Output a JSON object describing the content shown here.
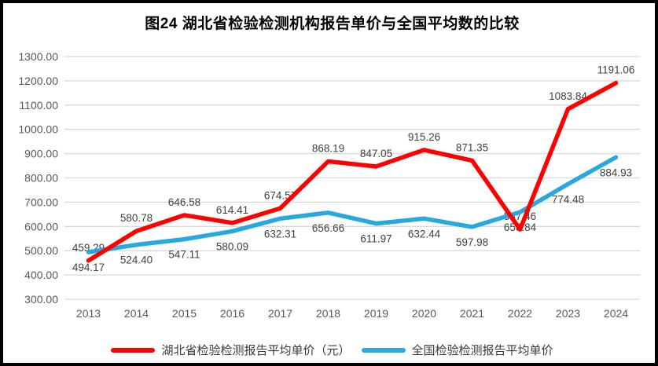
{
  "chart_data": {
    "type": "line",
    "title": "图24 湖北省检验检测机构报告单价与全国平均数的比较",
    "categories": [
      "2013",
      "2014",
      "2015",
      "2016",
      "2017",
      "2018",
      "2019",
      "2020",
      "2021",
      "2022",
      "2023",
      "2024"
    ],
    "series": [
      {
        "name": "湖北省检验检测报告平均单价（元）",
        "color": "#ff0000",
        "label_position": "above",
        "values": [
          459.29,
          580.78,
          646.58,
          614.41,
          674.57,
          868.19,
          847.05,
          915.26,
          871.35,
          587.46,
          1083.84,
          1191.06
        ]
      },
      {
        "name": "全国检验检测报告平均单价",
        "color": "#29a8e0",
        "label_position": "below",
        "values": [
          494.17,
          524.4,
          547.11,
          580.09,
          632.31,
          656.66,
          611.97,
          632.44,
          597.98,
          658.84,
          774.48,
          884.93
        ]
      }
    ],
    "ylim": [
      300,
      1300
    ],
    "ytick_step": 100,
    "ytick_labels": [
      "300.00",
      "400.00",
      "500.00",
      "600.00",
      "700.00",
      "800.00",
      "900.00",
      "1000.00",
      "1100.00",
      "1200.00",
      "1300.00"
    ],
    "grid": true,
    "legend_position": "bottom",
    "colors": {
      "gridline": "#d9d9d9",
      "axis_text": "#595959",
      "data_label": "#404040",
      "title_text": "#000000",
      "background": "#ffffff",
      "border": "#000000"
    }
  }
}
